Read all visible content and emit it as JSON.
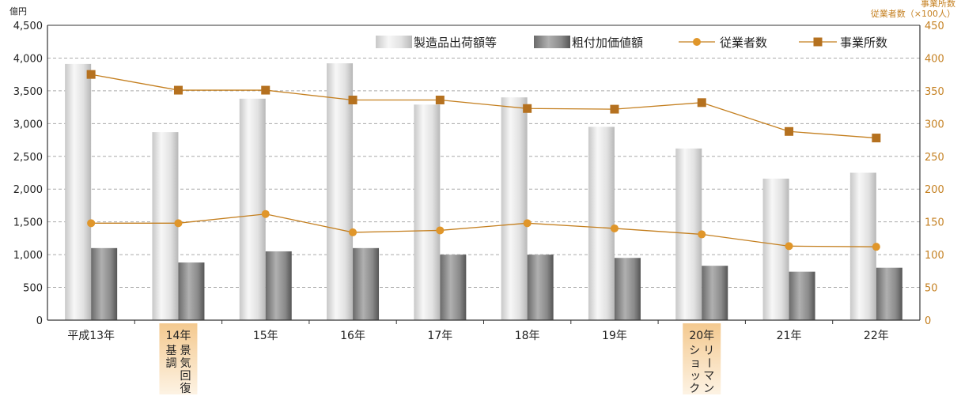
{
  "chart_data": {
    "type": "bar",
    "title": "",
    "categories": [
      "平成13年",
      "14年",
      "15年",
      "16年",
      "17年",
      "18年",
      "19年",
      "20年",
      "21年",
      "22年"
    ],
    "highlighted_categories": [
      "14年",
      "20年"
    ],
    "annotations": [
      {
        "category": "14年",
        "text": "景気回復基調",
        "lines": [
          "景気回復",
          "基調"
        ]
      },
      {
        "category": "20年",
        "text": "リーマンショック",
        "lines": [
          "リーマン",
          "ショック"
        ]
      }
    ],
    "left_axis": {
      "unit": "億円",
      "range": [
        0,
        4500
      ],
      "ticks": [
        "0",
        "500",
        "1,000",
        "1,500",
        "2,000",
        "2,500",
        "3,000",
        "3,500",
        "4,000",
        "4,500"
      ]
    },
    "right_axis": {
      "unit_lines": [
        "事業所数",
        "従業者数（×100人）"
      ],
      "range": [
        0,
        450
      ],
      "ticks": [
        "0",
        "50",
        "100",
        "150",
        "200",
        "250",
        "300",
        "350",
        "400",
        "450"
      ]
    },
    "grid": true,
    "legend_position": "top-right",
    "series": [
      {
        "name": "製造品出荷額等",
        "type": "bar",
        "axis": "left",
        "values": [
          3910,
          2870,
          3380,
          3920,
          3290,
          3400,
          2950,
          2620,
          2160,
          2250
        ]
      },
      {
        "name": "粗付加価値額",
        "type": "bar",
        "axis": "left",
        "values": [
          1100,
          880,
          1050,
          1100,
          1000,
          1000,
          950,
          830,
          740,
          800
        ]
      },
      {
        "name": "従業者数",
        "type": "line",
        "axis": "right",
        "marker": "circle",
        "values": [
          148,
          148,
          162,
          134,
          137,
          148,
          140,
          131,
          113,
          112
        ]
      },
      {
        "name": "事業所数",
        "type": "line",
        "axis": "right",
        "marker": "square",
        "values": [
          375,
          351,
          351,
          336,
          336,
          323,
          322,
          332,
          288,
          278
        ]
      }
    ],
    "colors": {
      "line": "#c47f1f",
      "circle_marker": "#e0962a",
      "square_marker": "#b5711f",
      "highlight": "#f6d9ad",
      "right_axis_text": "#c47f1f"
    }
  }
}
